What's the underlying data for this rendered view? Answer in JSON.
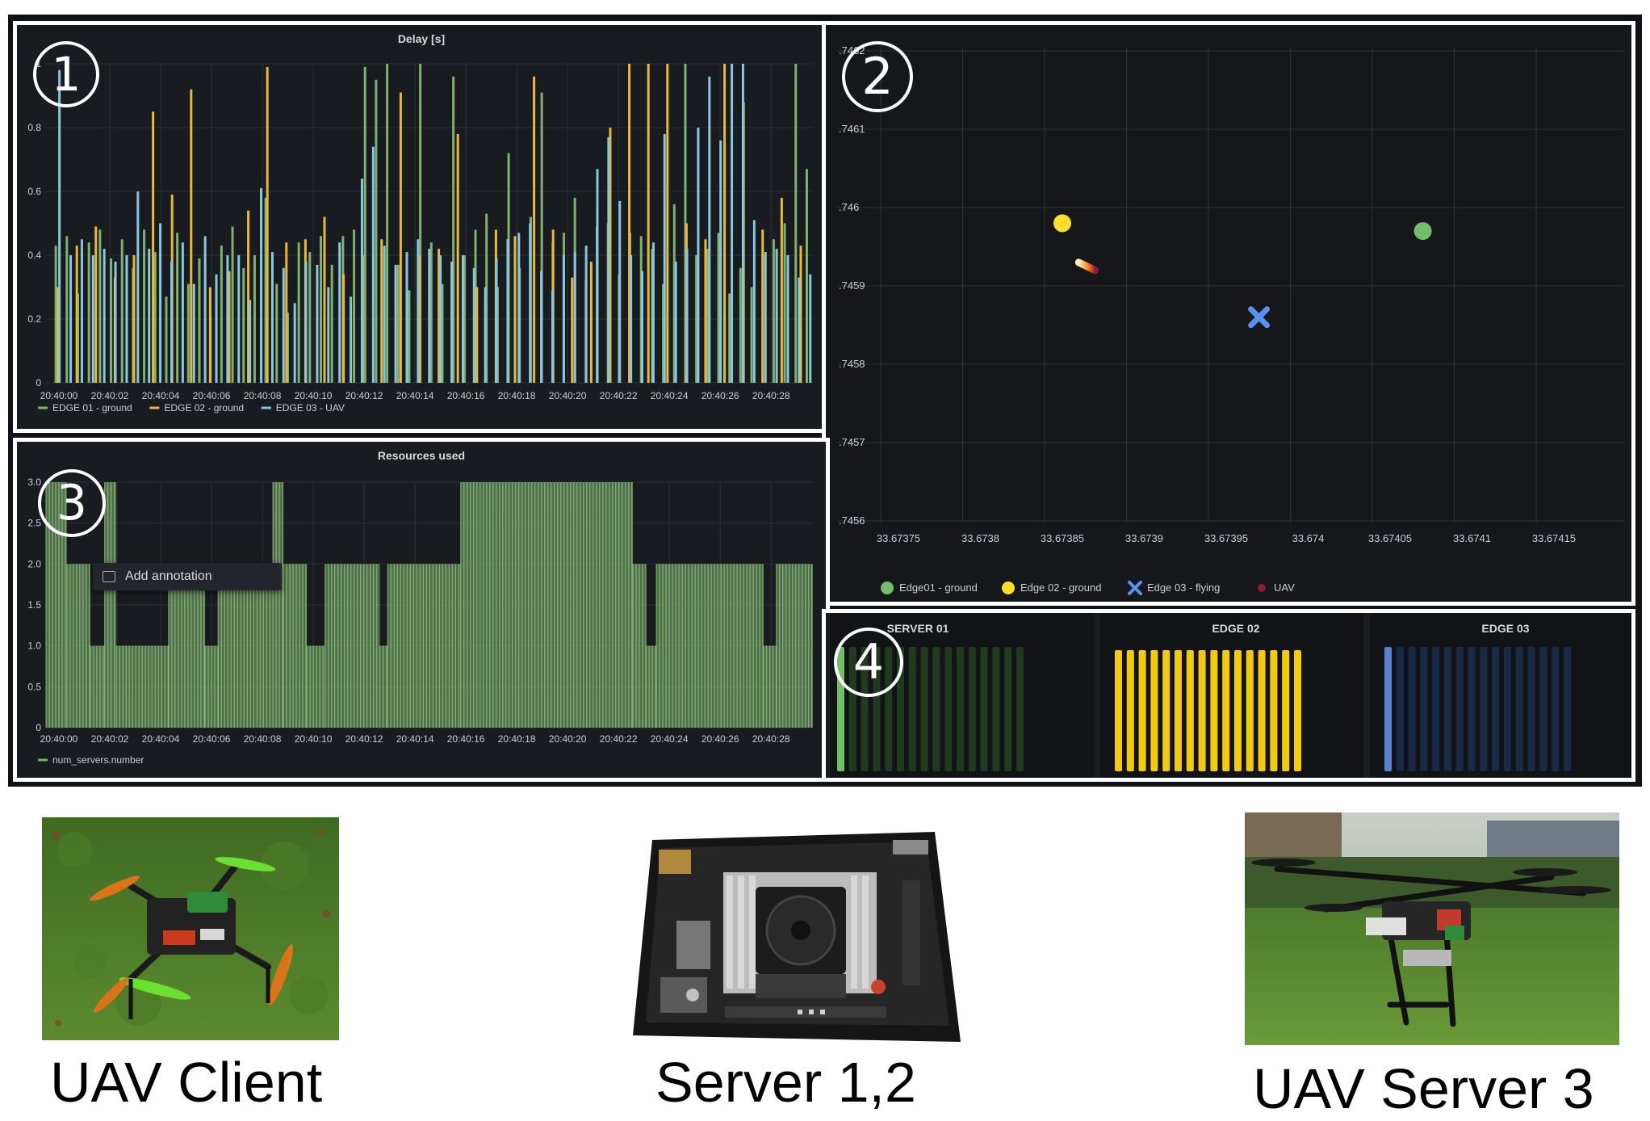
{
  "panels": {
    "delay": {
      "badge": "1",
      "title": "Delay [s]",
      "y_ticks": [
        "1",
        "0.8",
        "0.6",
        "0.4",
        "0.2",
        "0"
      ],
      "x_ticks": [
        "20:40:00",
        "20:40:02",
        "20:40:04",
        "20:40:06",
        "20:40:08",
        "20:40:10",
        "20:40:12",
        "20:40:14",
        "20:40:16",
        "20:40:18",
        "20:40:20",
        "20:40:22",
        "20:40:24",
        "20:40:26",
        "20:40:28"
      ],
      "legend": [
        {
          "label": "EDGE 01 - ground",
          "color": "#7eb26d"
        },
        {
          "label": "EDGE 02 - ground",
          "color": "#eab839"
        },
        {
          "label": "EDGE 03 - UAV",
          "color": "#8ac6de"
        }
      ]
    },
    "map": {
      "badge": "2",
      "y_ticks": [
        ".7462",
        ".7461",
        ".746",
        ".7459",
        ".7458",
        ".7457",
        ".7456"
      ],
      "x_ticks": [
        "33.67375",
        "33.6738",
        "33.67385",
        "33.6739",
        "33.67395",
        "33.674",
        "33.67405",
        "33.6741",
        "33.67415"
      ],
      "legend": [
        {
          "label": "Edge01 - ground",
          "color": "#73bf69",
          "marker": "circle"
        },
        {
          "label": "Edge 02 - ground",
          "color": "#fade2a",
          "marker": "circle"
        },
        {
          "label": "Edge 03 - flying",
          "color": "#5794f2",
          "marker": "cross"
        },
        {
          "label": "UAV",
          "color": "#8f1c2e",
          "marker": "dot"
        }
      ]
    },
    "resources": {
      "badge": "3",
      "title": "Resources used",
      "y_ticks": [
        "3.0",
        "2.5",
        "2.0",
        "1.5",
        "1.0",
        "0.5",
        "0"
      ],
      "x_ticks": [
        "20:40:00",
        "20:40:02",
        "20:40:04",
        "20:40:06",
        "20:40:08",
        "20:40:10",
        "20:40:12",
        "20:40:14",
        "20:40:16",
        "20:40:18",
        "20:40:20",
        "20:40:22",
        "20:40:24",
        "20:40:26",
        "20:40:28"
      ],
      "legend": [
        {
          "label": "num_servers.number",
          "color": "#7eb26d"
        }
      ],
      "tooltip": "Add annotation"
    },
    "servers": {
      "badge": "4",
      "gauges": [
        {
          "title": "SERVER 01",
          "on_color": "#73bf69",
          "off_color": "#1f3a1c",
          "segments": 16,
          "lit": 1
        },
        {
          "title": "EDGE 02",
          "on_color": "#f2cc0c",
          "off_color": "#4a4213",
          "segments": 16,
          "lit": 16
        },
        {
          "title": "EDGE 03",
          "on_color": "#5a83cf",
          "off_color": "#1a2a45",
          "segments": 16,
          "lit": 1
        }
      ]
    }
  },
  "chart_data": [
    {
      "type": "bar",
      "title": "Delay [s]",
      "xlabel": "",
      "ylabel": "",
      "ylim": [
        0,
        1
      ],
      "x_range": [
        "20:40:00",
        "20:40:29"
      ],
      "series": [
        {
          "name": "EDGE 01 - ground",
          "values": [
            0.43,
            0.46,
            0.28,
            0.44,
            0.48,
            0.39,
            0.45,
            0.36,
            0.48,
            0.41,
            0.27,
            0.47,
            0.31,
            0.39,
            0.21,
            0.43,
            0.49,
            0.36,
            0.4,
            0.58,
            0.31,
            0.22,
            0.44,
            0.41,
            0.46,
            0.37,
            0.46,
            0.48,
            0.99,
            0.95,
            1.0,
            0.37,
            0.29,
            1.0,
            0.44,
            0.31,
            0.96,
            0.4,
            0.48,
            0.53,
            0.3,
            0.72,
            0.36,
            0.52,
            0.91,
            0.44,
            0.47,
            0.58,
            0.32,
            0.49,
            0.5,
            0.34,
            0.47,
            0.46,
            0.42,
            0.31,
            0.56,
            1.0,
            0.4,
            0.42,
            0.47,
            0.28,
            0.36,
            0.3,
            0.4,
            0.45,
            0.5,
            1.0,
            0.67
          ]
        },
        {
          "name": "EDGE 02 - ground",
          "values": [
            0.3,
            0.43,
            0.49,
            0.33,
            0.4,
            0.85,
            0.59,
            0.92,
            0.3,
            0.35,
            0.54,
            0.99,
            0.44,
            0.45,
            0.52,
            0.34,
            0.4,
            0.45,
            0.91,
            0.4,
            0.42,
            0.78,
            0.3,
            0.48,
            0.46,
            0.96,
            0.48,
            0.33,
            0.38,
            0.8,
            1.0,
            1.0,
            1.0,
            0.5,
            0.45,
            1.0,
            0.88,
            0.48,
            0.58,
            0.43
          ]
        },
        {
          "name": "EDGE 03 - UAV",
          "values": [
            0.98,
            0.4,
            0.45,
            0.4,
            0.42,
            0.38,
            0.4,
            0.6,
            0.42,
            0.5,
            0.38,
            0.44,
            0.31,
            0.46,
            0.34,
            0.4,
            0.4,
            0.26,
            0.61,
            0.41,
            0.36,
            0.25,
            0.38,
            0.37,
            0.3,
            0.44,
            0.27,
            0.64,
            0.74,
            0.43,
            0.37,
            0.41,
            0.45,
            0.42,
            0.4,
            0.38,
            0.4,
            0.36,
            0.3,
            0.39,
            0.45,
            0.47,
            0.5,
            0.35,
            0.29,
            0.4,
            0.41,
            0.43,
            0.67,
            0.77,
            0.57,
            0.4,
            0.35,
            0.44,
            0.78,
            0.38,
            0.42,
            0.8,
            0.96,
            0.76,
            1.0,
            1.0,
            0.51,
            0.41,
            0.42,
            0.4,
            0.33,
            0.34
          ]
        }
      ]
    },
    {
      "type": "scatter",
      "title": "",
      "xlim": [
        33.6737,
        33.6742
      ],
      "ylim": [
        0.74555,
        0.74623
      ],
      "series": [
        {
          "name": "Edge01 - ground",
          "x": [
            33.67407
          ],
          "y": [
            0.74597
          ]
        },
        {
          "name": "Edge 02 - ground",
          "x": [
            33.67385
          ],
          "y": [
            0.74598
          ]
        },
        {
          "name": "Edge 03 - flying",
          "x": [
            33.67397
          ],
          "y": [
            0.74586
          ]
        },
        {
          "name": "UAV",
          "x": [
            33.67386,
            33.67387
          ],
          "y": [
            0.74593,
            0.74592
          ]
        }
      ]
    },
    {
      "type": "bar",
      "title": "Resources used",
      "ylim": [
        0,
        3.0
      ],
      "x_range": [
        "20:40:00",
        "20:40:29"
      ],
      "series": [
        {
          "name": "num_servers.number",
          "segments": [
            {
              "from": 0.0,
              "to": 0.8,
              "value": 3
            },
            {
              "from": 0.8,
              "to": 1.7,
              "value": 2
            },
            {
              "from": 1.7,
              "to": 2.25,
              "value": 1
            },
            {
              "from": 2.25,
              "to": 2.7,
              "value": 3
            },
            {
              "from": 2.7,
              "to": 4.7,
              "value": 1
            },
            {
              "from": 4.7,
              "to": 6.1,
              "value": 2
            },
            {
              "from": 6.1,
              "to": 6.6,
              "value": 1
            },
            {
              "from": 6.6,
              "to": 8.7,
              "value": 2
            },
            {
              "from": 8.7,
              "to": 9.1,
              "value": 3
            },
            {
              "from": 9.1,
              "to": 10.0,
              "value": 2
            },
            {
              "from": 10.0,
              "to": 10.7,
              "value": 1
            },
            {
              "from": 10.7,
              "to": 12.8,
              "value": 2
            },
            {
              "from": 12.8,
              "to": 13.1,
              "value": 1
            },
            {
              "from": 13.1,
              "to": 15.9,
              "value": 2
            },
            {
              "from": 15.9,
              "to": 22.5,
              "value": 3
            },
            {
              "from": 22.5,
              "to": 23.0,
              "value": 2
            },
            {
              "from": 23.0,
              "to": 23.4,
              "value": 1
            },
            {
              "from": 23.4,
              "to": 27.5,
              "value": 2
            },
            {
              "from": 27.5,
              "to": 28.0,
              "value": 1
            },
            {
              "from": 28.0,
              "to": 29.4,
              "value": 2
            }
          ]
        }
      ]
    }
  ],
  "photos": [
    {
      "caption": "UAV Client"
    },
    {
      "caption": "Server 1,2"
    },
    {
      "caption": "UAV Server 3"
    }
  ]
}
